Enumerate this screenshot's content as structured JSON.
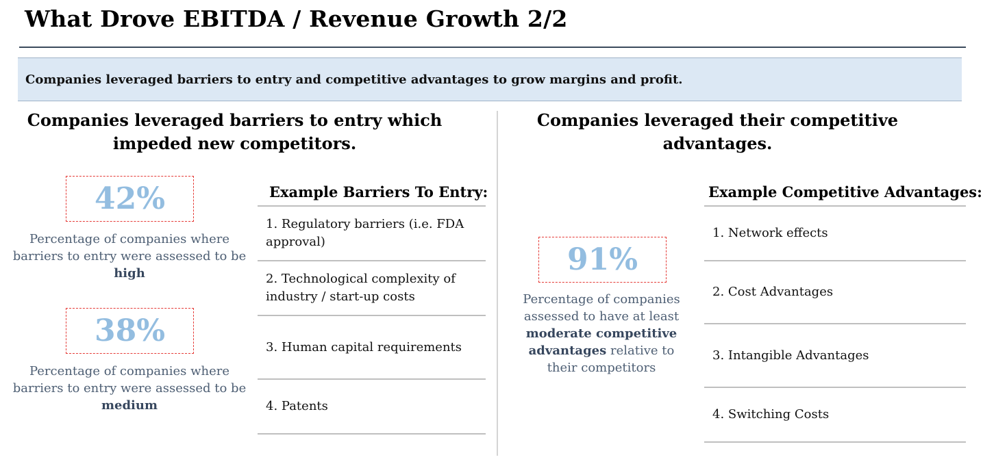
{
  "title": "What Drove EBITDA / Revenue Growth 2/2",
  "banner": "Companies leveraged barriers to entry and competitive advantages to grow margins and profit.",
  "left": {
    "heading_line1": "Companies leveraged barriers to entry which",
    "heading_line2": "impeded new competitors.",
    "stats": [
      {
        "value": "42%",
        "desc": "Percentage of companies where barriers to entry were assessed to be",
        "emphasis": "high"
      },
      {
        "value": "38%",
        "desc": "Percentage of companies where barriers to entry were assessed to be",
        "emphasis": "medium"
      }
    ],
    "list_title": "Example Barriers To Entry:",
    "items": [
      "1. Regulatory barriers (i.e. FDA approval)",
      "2. Technological complexity of industry / start-up costs",
      "3. Human capital requirements",
      "4. Patents"
    ]
  },
  "right": {
    "heading_line1": "Companies leveraged their competitive",
    "heading_line2": "advantages.",
    "stat": {
      "value": "91%",
      "desc_pre": "Percentage of companies assessed to have at least",
      "emphasis": "moderate competitive advantages",
      "desc_post": "relative to their competitors"
    },
    "list_title": "Example Competitive Advantages:",
    "items": [
      "1. Network effects",
      "2. Cost Advantages",
      "3. Intangible Advantages",
      "4. Switching Costs"
    ]
  },
  "colors": {
    "stat_value": "#93bde0",
    "stat_border": "#e53935",
    "banner_bg": "#dce8f4",
    "desc_text": "#4d5e73"
  }
}
